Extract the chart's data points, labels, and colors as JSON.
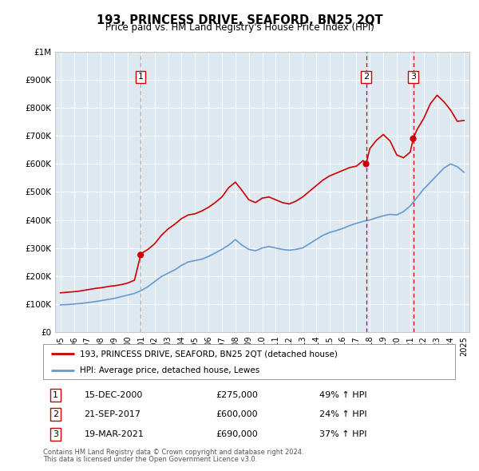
{
  "title": "193, PRINCESS DRIVE, SEAFORD, BN25 2QT",
  "subtitle": "Price paid vs. HM Land Registry's House Price Index (HPI)",
  "legend_line1": "193, PRINCESS DRIVE, SEAFORD, BN25 2QT (detached house)",
  "legend_line2": "HPI: Average price, detached house, Lewes",
  "footer1": "Contains HM Land Registry data © Crown copyright and database right 2024.",
  "footer2": "This data is licensed under the Open Government Licence v3.0.",
  "sale_color": "#cc0000",
  "hpi_color": "#6699cc",
  "background_color": "#dde8f0",
  "ylim": [
    0,
    1000000
  ],
  "yticks": [
    0,
    100000,
    200000,
    300000,
    400000,
    500000,
    600000,
    700000,
    800000,
    900000,
    1000000
  ],
  "ytick_labels": [
    "£0",
    "£100K",
    "£200K",
    "£300K",
    "£400K",
    "£500K",
    "£600K",
    "£700K",
    "£800K",
    "£900K",
    "£1M"
  ],
  "xlim_start": 1994.6,
  "xlim_end": 2025.4,
  "transactions": [
    {
      "num": 1,
      "date": "15-DEC-2000",
      "x": 2000.96,
      "price": 275000,
      "pct": "49%",
      "vline_style": "dashed",
      "vline_color": "#aaaaaa"
    },
    {
      "num": 2,
      "date": "21-SEP-2017",
      "x": 2017.72,
      "price": 600000,
      "pct": "24%",
      "vline_style": "dashed",
      "vline_color": "#cc0000"
    },
    {
      "num": 3,
      "date": "19-MAR-2021",
      "x": 2021.22,
      "price": 690000,
      "pct": "37%",
      "vline_style": "dashed",
      "vline_color": "#cc0000"
    }
  ],
  "sale_series": [
    [
      1995.0,
      140000
    ],
    [
      1995.25,
      141000
    ],
    [
      1995.5,
      142000
    ],
    [
      1995.75,
      143000
    ],
    [
      1996.0,
      144000
    ],
    [
      1996.25,
      145000
    ],
    [
      1996.5,
      147000
    ],
    [
      1996.75,
      149000
    ],
    [
      1997.0,
      151000
    ],
    [
      1997.25,
      153000
    ],
    [
      1997.5,
      155000
    ],
    [
      1997.75,
      157000
    ],
    [
      1998.0,
      158000
    ],
    [
      1998.25,
      160000
    ],
    [
      1998.5,
      162000
    ],
    [
      1998.75,
      164000
    ],
    [
      1999.0,
      165000
    ],
    [
      1999.25,
      167000
    ],
    [
      1999.5,
      169000
    ],
    [
      1999.75,
      172000
    ],
    [
      2000.0,
      175000
    ],
    [
      2000.5,
      185000
    ],
    [
      2000.96,
      275000
    ],
    [
      2001.0,
      280000
    ],
    [
      2001.5,
      295000
    ],
    [
      2002.0,
      315000
    ],
    [
      2002.5,
      345000
    ],
    [
      2003.0,
      368000
    ],
    [
      2003.5,
      385000
    ],
    [
      2004.0,
      405000
    ],
    [
      2004.5,
      418000
    ],
    [
      2005.0,
      422000
    ],
    [
      2005.5,
      432000
    ],
    [
      2006.0,
      445000
    ],
    [
      2006.5,
      462000
    ],
    [
      2007.0,
      482000
    ],
    [
      2007.5,
      515000
    ],
    [
      2008.0,
      535000
    ],
    [
      2008.5,
      505000
    ],
    [
      2009.0,
      472000
    ],
    [
      2009.5,
      462000
    ],
    [
      2010.0,
      478000
    ],
    [
      2010.5,
      482000
    ],
    [
      2011.0,
      472000
    ],
    [
      2011.5,
      462000
    ],
    [
      2012.0,
      457000
    ],
    [
      2012.5,
      467000
    ],
    [
      2013.0,
      482000
    ],
    [
      2013.5,
      502000
    ],
    [
      2014.0,
      522000
    ],
    [
      2014.5,
      542000
    ],
    [
      2015.0,
      557000
    ],
    [
      2015.5,
      567000
    ],
    [
      2016.0,
      577000
    ],
    [
      2016.5,
      587000
    ],
    [
      2017.0,
      592000
    ],
    [
      2017.5,
      612000
    ],
    [
      2017.72,
      600000
    ],
    [
      2018.0,
      655000
    ],
    [
      2018.5,
      685000
    ],
    [
      2019.0,
      705000
    ],
    [
      2019.5,
      682000
    ],
    [
      2020.0,
      632000
    ],
    [
      2020.5,
      622000
    ],
    [
      2021.0,
      642000
    ],
    [
      2021.22,
      690000
    ],
    [
      2021.5,
      722000
    ],
    [
      2022.0,
      762000
    ],
    [
      2022.5,
      815000
    ],
    [
      2023.0,
      845000
    ],
    [
      2023.5,
      822000
    ],
    [
      2024.0,
      792000
    ],
    [
      2024.5,
      752000
    ],
    [
      2025.0,
      755000
    ]
  ],
  "hpi_series": [
    [
      1995.0,
      97000
    ],
    [
      1995.25,
      97500
    ],
    [
      1995.5,
      98000
    ],
    [
      1995.75,
      99000
    ],
    [
      1996.0,
      100000
    ],
    [
      1996.25,
      101000
    ],
    [
      1996.5,
      102000
    ],
    [
      1996.75,
      103500
    ],
    [
      1997.0,
      105000
    ],
    [
      1997.25,
      106500
    ],
    [
      1997.5,
      108000
    ],
    [
      1997.75,
      110000
    ],
    [
      1998.0,
      112000
    ],
    [
      1998.25,
      114000
    ],
    [
      1998.5,
      116000
    ],
    [
      1998.75,
      118000
    ],
    [
      1999.0,
      120000
    ],
    [
      1999.25,
      123000
    ],
    [
      1999.5,
      126000
    ],
    [
      1999.75,
      129000
    ],
    [
      2000.0,
      132000
    ],
    [
      2000.25,
      135000
    ],
    [
      2000.5,
      138000
    ],
    [
      2000.75,
      143000
    ],
    [
      2001.0,
      148000
    ],
    [
      2001.25,
      155000
    ],
    [
      2001.5,
      162000
    ],
    [
      2001.75,
      171000
    ],
    [
      2002.0,
      180000
    ],
    [
      2002.25,
      189000
    ],
    [
      2002.5,
      198000
    ],
    [
      2002.75,
      204000
    ],
    [
      2003.0,
      210000
    ],
    [
      2003.25,
      216000
    ],
    [
      2003.5,
      222000
    ],
    [
      2003.75,
      230000
    ],
    [
      2004.0,
      238000
    ],
    [
      2004.25,
      244000
    ],
    [
      2004.5,
      250000
    ],
    [
      2004.75,
      252500
    ],
    [
      2005.0,
      255000
    ],
    [
      2005.25,
      257500
    ],
    [
      2005.5,
      260000
    ],
    [
      2005.75,
      265000
    ],
    [
      2006.0,
      270000
    ],
    [
      2006.25,
      276000
    ],
    [
      2006.5,
      282000
    ],
    [
      2006.75,
      288500
    ],
    [
      2007.0,
      295000
    ],
    [
      2007.25,
      302500
    ],
    [
      2007.5,
      310000
    ],
    [
      2007.75,
      320000
    ],
    [
      2008.0,
      330000
    ],
    [
      2008.25,
      320000
    ],
    [
      2008.5,
      310000
    ],
    [
      2008.75,
      302500
    ],
    [
      2009.0,
      295000
    ],
    [
      2009.25,
      292500
    ],
    [
      2009.5,
      290000
    ],
    [
      2009.75,
      295000
    ],
    [
      2010.0,
      300000
    ],
    [
      2010.25,
      302500
    ],
    [
      2010.5,
      305000
    ],
    [
      2010.75,
      302500
    ],
    [
      2011.0,
      300000
    ],
    [
      2011.25,
      297500
    ],
    [
      2011.5,
      295000
    ],
    [
      2011.75,
      293500
    ],
    [
      2012.0,
      292000
    ],
    [
      2012.25,
      293500
    ],
    [
      2012.5,
      295000
    ],
    [
      2012.75,
      297500
    ],
    [
      2013.0,
      300000
    ],
    [
      2013.25,
      307500
    ],
    [
      2013.5,
      315000
    ],
    [
      2013.75,
      322500
    ],
    [
      2014.0,
      330000
    ],
    [
      2014.25,
      337500
    ],
    [
      2014.5,
      345000
    ],
    [
      2014.75,
      350000
    ],
    [
      2015.0,
      355000
    ],
    [
      2015.25,
      358500
    ],
    [
      2015.5,
      362000
    ],
    [
      2015.75,
      366000
    ],
    [
      2016.0,
      370000
    ],
    [
      2016.25,
      375000
    ],
    [
      2016.5,
      380000
    ],
    [
      2016.75,
      384000
    ],
    [
      2017.0,
      388000
    ],
    [
      2017.25,
      391500
    ],
    [
      2017.5,
      395000
    ],
    [
      2017.75,
      397500
    ],
    [
      2018.0,
      400000
    ],
    [
      2018.25,
      404000
    ],
    [
      2018.5,
      408000
    ],
    [
      2018.75,
      411500
    ],
    [
      2019.0,
      415000
    ],
    [
      2019.25,
      417500
    ],
    [
      2019.5,
      420000
    ],
    [
      2019.75,
      419000
    ],
    [
      2020.0,
      418000
    ],
    [
      2020.25,
      424000
    ],
    [
      2020.5,
      430000
    ],
    [
      2020.75,
      440000
    ],
    [
      2021.0,
      450000
    ],
    [
      2021.25,
      465000
    ],
    [
      2021.5,
      480000
    ],
    [
      2021.75,
      495000
    ],
    [
      2022.0,
      510000
    ],
    [
      2022.25,
      522500
    ],
    [
      2022.5,
      535000
    ],
    [
      2022.75,
      547500
    ],
    [
      2023.0,
      560000
    ],
    [
      2023.25,
      572500
    ],
    [
      2023.5,
      585000
    ],
    [
      2023.75,
      592500
    ],
    [
      2024.0,
      600000
    ],
    [
      2024.25,
      595000
    ],
    [
      2024.5,
      590000
    ],
    [
      2024.75,
      580000
    ],
    [
      2025.0,
      570000
    ]
  ]
}
